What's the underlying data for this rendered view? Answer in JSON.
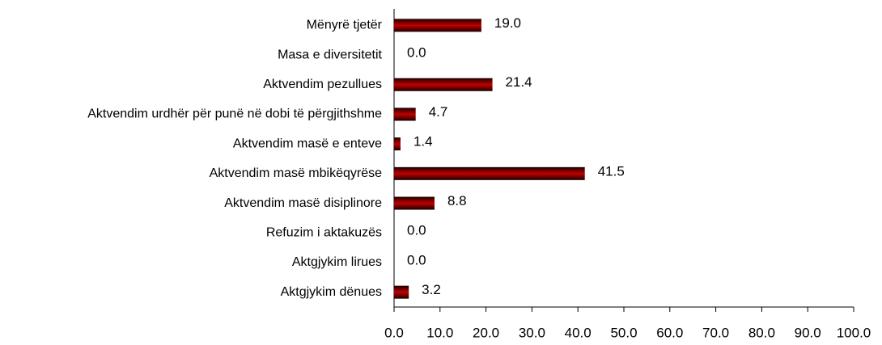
{
  "chart_data": {
    "type": "bar",
    "orientation": "horizontal",
    "categories": [
      "Mënyrë tjetër",
      "Masa e diversitetit",
      "Aktvendim pezullues",
      "Aktvendim urdhër për punë në dobi të përgjithshme",
      "Aktvendim masë e enteve",
      "Aktvendim masë mbikëqyrëse",
      "Aktvendim masë disiplinore",
      "Refuzim i aktakuzës",
      "Aktgjykim lirues",
      "Aktgjykim dënues"
    ],
    "values": [
      19.0,
      0.0,
      21.4,
      4.7,
      1.4,
      41.5,
      8.8,
      0.0,
      0.0,
      3.2
    ],
    "value_labels": [
      "19.0",
      "0.0",
      "21.4",
      "4.7",
      "1.4",
      "41.5",
      "8.8",
      "0.0",
      "0.0",
      "3.2"
    ],
    "color": "#c00000",
    "xlim": [
      0,
      100
    ],
    "xticks": [
      {
        "value": 0,
        "label": "0.0"
      },
      {
        "value": 10,
        "label": "10.0"
      },
      {
        "value": 20,
        "label": "20.0"
      },
      {
        "value": 30,
        "label": "30.0"
      },
      {
        "value": 40,
        "label": "40.0"
      },
      {
        "value": 50,
        "label": "50.0"
      },
      {
        "value": 60,
        "label": "60.0"
      },
      {
        "value": 70,
        "label": "70.0"
      },
      {
        "value": 80,
        "label": "80.0"
      },
      {
        "value": 90,
        "label": "90.0"
      },
      {
        "value": 100,
        "label": "100.0"
      }
    ]
  }
}
